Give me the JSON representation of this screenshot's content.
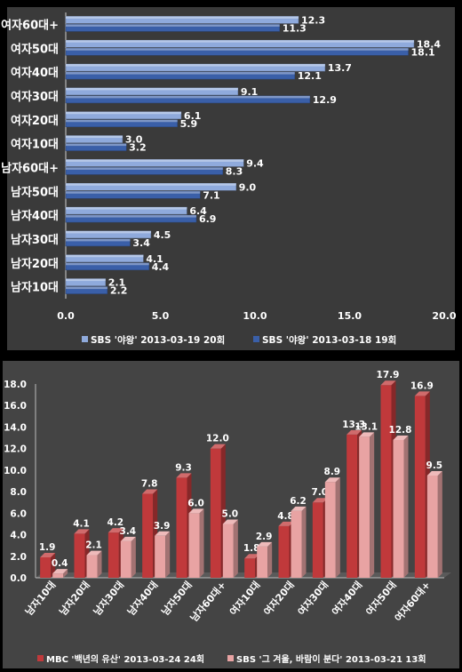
{
  "chart_data": [
    {
      "type": "bar",
      "orientation": "horizontal",
      "categories": [
        "여자60대+",
        "여자50대",
        "여자40대",
        "여자30대",
        "여자20대",
        "여자10대",
        "남자60대+",
        "남자50대",
        "남자40대",
        "남자30대",
        "남자20대",
        "남자10대"
      ],
      "series": [
        {
          "name": "SBS '야왕' 2013-03-19 20회",
          "values": [
            12.3,
            18.4,
            13.7,
            9.1,
            6.1,
            3.0,
            9.4,
            9.0,
            6.4,
            4.5,
            4.1,
            2.1
          ],
          "color": "#8faadc"
        },
        {
          "name": "SBS '야왕' 2013-03-18 19회",
          "values": [
            11.3,
            18.1,
            12.1,
            12.9,
            5.9,
            3.2,
            8.3,
            7.1,
            6.9,
            3.4,
            4.4,
            2.2
          ],
          "color": "#3a5fa8"
        }
      ],
      "xlim": [
        0,
        20
      ],
      "xticks": [
        "0.0",
        "5.0",
        "10.0",
        "15.0",
        "20.0"
      ],
      "legend": "bottom",
      "grid": false
    },
    {
      "type": "bar",
      "orientation": "vertical",
      "categories": [
        "남자10대",
        "남자20대",
        "남자30대",
        "남자40대",
        "남자50대",
        "남자60대+",
        "여자10대",
        "여자20대",
        "여자30대",
        "여자40대",
        "여자50대",
        "여자60대+"
      ],
      "series": [
        {
          "name": "MBC '백년의 유산' 2013-03-24 24회",
          "values": [
            1.9,
            4.1,
            4.2,
            7.8,
            9.3,
            12.0,
            1.8,
            4.8,
            7.0,
            13.3,
            17.9,
            16.9
          ],
          "color": "#c0393b"
        },
        {
          "name": "SBS '그 겨울, 바람이 분다' 2013-03-21 13회",
          "values": [
            0.4,
            2.1,
            3.4,
            3.9,
            6.0,
            5.0,
            2.9,
            6.2,
            8.9,
            13.1,
            12.8,
            9.5
          ],
          "color": "#e8a3a3"
        }
      ],
      "ylim": [
        0,
        18
      ],
      "yticks": [
        "0.0",
        "2.0",
        "4.0",
        "6.0",
        "8.0",
        "10.0",
        "12.0",
        "14.0",
        "16.0",
        "18.0"
      ],
      "legend": "bottom",
      "grid": false
    }
  ]
}
